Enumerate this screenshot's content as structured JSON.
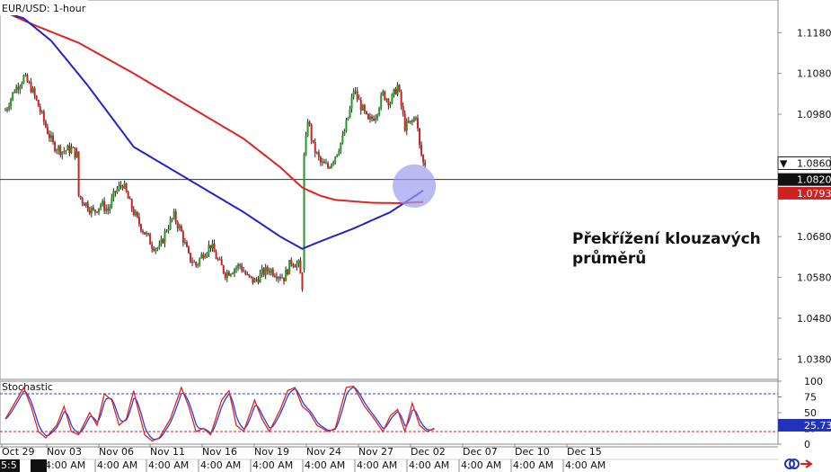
{
  "chart_data": [
    {
      "type": "candlestick",
      "title": "EUR/USD: 1-hour",
      "ylim": [
        1.033,
        1.126
      ],
      "y_ticks": [
        "1.1180",
        "1.1080",
        "1.0980",
        "1.0860",
        "1.0680",
        "1.0580",
        "1.0480",
        "1.0380"
      ],
      "x_dates": [
        "Oct 29",
        "Nov 03",
        "Nov 06",
        "Nov 11",
        "Nov 16",
        "Nov 19",
        "Nov 24",
        "Nov 27",
        "Dec 02",
        "Dec 07",
        "Dec 10",
        "Dec 15"
      ],
      "x_times": [
        "5:5",
        "4:00 AM",
        "4:00 AM",
        "4:00 AM",
        "4:00 AM",
        "4:00 AM",
        "4:00 AM",
        "4:00 AM",
        "4:00 AM",
        "4:00 AM",
        "4:00 AM",
        "4:00 AM",
        "4:00 AM"
      ],
      "price_anchors": [
        [
          0,
          1.099
        ],
        [
          5,
          1.104
        ],
        [
          10,
          1.107
        ],
        [
          14,
          1.1045
        ],
        [
          18,
          1.1
        ],
        [
          22,
          1.095
        ],
        [
          26,
          1.0905
        ],
        [
          31,
          1.089
        ],
        [
          36,
          1.0895
        ],
        [
          39,
          1.088
        ],
        [
          40,
          1.078
        ],
        [
          44,
          1.076
        ],
        [
          48,
          1.074
        ],
        [
          52,
          1.076
        ],
        [
          56,
          1.0745
        ],
        [
          60,
          1.079
        ],
        [
          64,
          1.081
        ],
        [
          68,
          1.076
        ],
        [
          72,
          1.072
        ],
        [
          76,
          1.069
        ],
        [
          80,
          1.066
        ],
        [
          84,
          1.065
        ],
        [
          88,
          1.07
        ],
        [
          92,
          1.073
        ],
        [
          96,
          1.069
        ],
        [
          100,
          1.063
        ],
        [
          104,
          1.061
        ],
        [
          108,
          1.064
        ],
        [
          112,
          1.066
        ],
        [
          116,
          1.062
        ],
        [
          120,
          1.059
        ],
        [
          124,
          1.06
        ],
        [
          128,
          1.061
        ],
        [
          132,
          1.058
        ],
        [
          136,
          1.057
        ],
        [
          140,
          1.059
        ],
        [
          144,
          1.06
        ],
        [
          148,
          1.059
        ],
        [
          152,
          1.058
        ],
        [
          156,
          1.062
        ],
        [
          160,
          1.061
        ],
        [
          162,
          1.056
        ],
        [
          163,
          1.086
        ],
        [
          165,
          1.097
        ],
        [
          168,
          1.09
        ],
        [
          172,
          1.086
        ],
        [
          176,
          1.085
        ],
        [
          180,
          1.088
        ],
        [
          184,
          1.092
        ],
        [
          188,
          1.099
        ],
        [
          190,
          1.104
        ],
        [
          194,
          1.1
        ],
        [
          198,
          1.096
        ],
        [
          202,
          1.098
        ],
        [
          206,
          1.103
        ],
        [
          210,
          1.101
        ],
        [
          214,
          1.105
        ],
        [
          216,
          1.1
        ],
        [
          218,
          1.095
        ],
        [
          222,
          1.096
        ],
        [
          224,
          1.098
        ],
        [
          226,
          1.09
        ],
        [
          228,
          1.086
        ]
      ],
      "ma_200": {
        "color": "#e02222",
        "points": [
          [
            0,
            1.123
          ],
          [
            15,
            1.12
          ],
          [
            40,
            1.1155
          ],
          [
            70,
            1.108
          ],
          [
            100,
            1.1
          ],
          [
            130,
            1.092
          ],
          [
            150,
            1.085
          ],
          [
            162,
            1.08
          ],
          [
            172,
            1.078
          ],
          [
            180,
            1.077
          ],
          [
            200,
            1.0763
          ],
          [
            215,
            1.0762
          ],
          [
            228,
            1.0765
          ]
        ]
      },
      "ma_100": {
        "color": "#2222cc",
        "points": [
          [
            0,
            1.123
          ],
          [
            10,
            1.1215
          ],
          [
            25,
            1.116
          ],
          [
            45,
            1.105
          ],
          [
            70,
            1.09
          ],
          [
            100,
            1.082
          ],
          [
            130,
            1.074
          ],
          [
            150,
            1.068
          ],
          [
            162,
            1.065
          ],
          [
            170,
            1.0665
          ],
          [
            190,
            1.07
          ],
          [
            210,
            1.074
          ],
          [
            228,
            1.0793
          ]
        ]
      },
      "horizontal_level": "1.0820",
      "current_price": "1.0860",
      "price_badges": [
        "1.0820",
        "1.0793"
      ],
      "annotation": "Překřížení klouzavých průměrů",
      "highlight_circle_color": "#9b9bf0",
      "up_color": "#229922",
      "down_color": "#cc2222"
    },
    {
      "type": "line",
      "title": "Stochastic",
      "ylim": [
        0,
        100
      ],
      "y_ticks": [
        "100",
        "75",
        "50",
        "25",
        "0"
      ],
      "overbought": 80,
      "oversold": 20,
      "current_value": "25.73",
      "k_anchors": [
        [
          0,
          40
        ],
        [
          6,
          70
        ],
        [
          10,
          90
        ],
        [
          14,
          60
        ],
        [
          18,
          20
        ],
        [
          22,
          10
        ],
        [
          28,
          30
        ],
        [
          32,
          60
        ],
        [
          36,
          20
        ],
        [
          40,
          15
        ],
        [
          46,
          50
        ],
        [
          50,
          30
        ],
        [
          54,
          80
        ],
        [
          58,
          70
        ],
        [
          62,
          30
        ],
        [
          66,
          40
        ],
        [
          70,
          85
        ],
        [
          72,
          60
        ],
        [
          76,
          15
        ],
        [
          80,
          5
        ],
        [
          84,
          10
        ],
        [
          90,
          40
        ],
        [
          96,
          90
        ],
        [
          100,
          60
        ],
        [
          104,
          20
        ],
        [
          108,
          25
        ],
        [
          112,
          15
        ],
        [
          118,
          70
        ],
        [
          122,
          85
        ],
        [
          126,
          30
        ],
        [
          130,
          20
        ],
        [
          136,
          70
        ],
        [
          140,
          40
        ],
        [
          144,
          20
        ],
        [
          150,
          55
        ],
        [
          154,
          85
        ],
        [
          158,
          90
        ],
        [
          162,
          60
        ],
        [
          166,
          50
        ],
        [
          170,
          30
        ],
        [
          176,
          20
        ],
        [
          180,
          25
        ],
        [
          186,
          90
        ],
        [
          190,
          92
        ],
        [
          196,
          60
        ],
        [
          200,
          45
        ],
        [
          206,
          20
        ],
        [
          210,
          45
        ],
        [
          214,
          55
        ],
        [
          218,
          20
        ],
        [
          222,
          65
        ],
        [
          226,
          30
        ],
        [
          230,
          20
        ],
        [
          234,
          25
        ]
      ],
      "k_color": "#e02222",
      "d_color": "#2244dd"
    }
  ],
  "ui": {
    "refresh_icon_color": "#2233bb",
    "share_icon_color": "#cc2222"
  }
}
